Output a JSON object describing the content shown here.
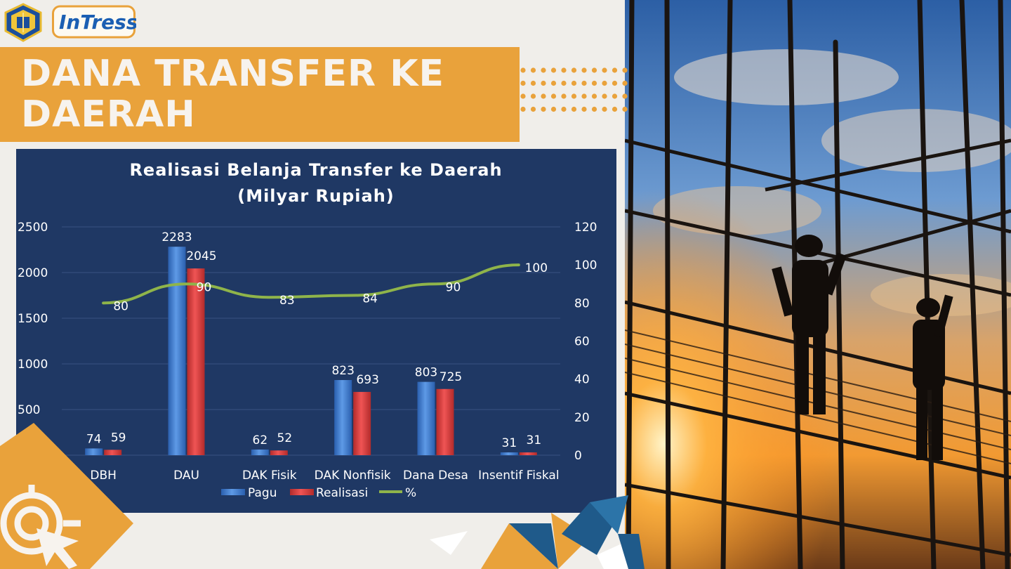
{
  "header": {
    "logo_right_text": "InTress",
    "title": "DANA TRANSFER KE DAERAH"
  },
  "colors": {
    "accent_orange": "#e9a23b",
    "chart_background": "#1f3864",
    "pagu": "#3a78c8",
    "realisasi": "#d63b3b",
    "percent_line": "#8fb44a"
  },
  "chart_data": {
    "type": "bar",
    "title": "Realisasi Belanja Transfer ke Daerah",
    "subtitle": "(Milyar Rupiah)",
    "categories": [
      "DBH",
      "DAU",
      "DAK Fisik",
      "DAK Nonfisik",
      "Dana Desa",
      "Insentif Fiskal"
    ],
    "series": [
      {
        "name": "Pagu",
        "type": "bar",
        "axis": "left",
        "values": [
          74,
          2283,
          62,
          823,
          803,
          31
        ]
      },
      {
        "name": "Realisasi",
        "type": "bar",
        "axis": "left",
        "values": [
          59,
          2045,
          52,
          693,
          725,
          31
        ]
      },
      {
        "name": "%",
        "type": "line",
        "axis": "right",
        "values": [
          80,
          90,
          83,
          84,
          90,
          100
        ]
      }
    ],
    "ylim_left": [
      0,
      2500
    ],
    "yticks_left": [
      0,
      500,
      1000,
      1500,
      2000,
      2500
    ],
    "yticks_left_labels": [
      "",
      "500",
      "1000",
      "1500",
      "2000",
      "2500"
    ],
    "ylim_right": [
      0,
      120
    ],
    "yticks_right": [
      0,
      20,
      40,
      60,
      80,
      100,
      120
    ],
    "grid": true,
    "legend_position": "bottom"
  }
}
